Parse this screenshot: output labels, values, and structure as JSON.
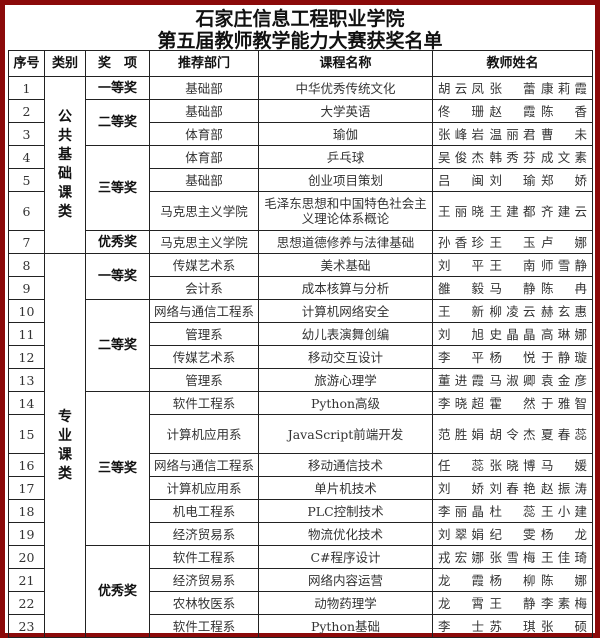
{
  "title": {
    "line1": "石家庄信息工程职业学院",
    "line2": "第五届教师教学能力大赛获奖名单"
  },
  "headers": [
    "序号",
    "类别",
    "奖　项",
    "推荐部门",
    "课程名称",
    "教师姓名"
  ],
  "categories": [
    {
      "label": "公共基础课类",
      "start": 0,
      "span": 7
    },
    {
      "label": "专业课类",
      "start": 7,
      "span": 16
    }
  ],
  "awards": [
    {
      "label": "一等奖",
      "start": 0,
      "span": 1
    },
    {
      "label": "二等奖",
      "start": 1,
      "span": 2
    },
    {
      "label": "三等奖",
      "start": 3,
      "span": 3
    },
    {
      "label": "优秀奖",
      "start": 6,
      "span": 1
    },
    {
      "label": "一等奖",
      "start": 7,
      "span": 2
    },
    {
      "label": "二等奖",
      "start": 9,
      "span": 4
    },
    {
      "label": "三等奖",
      "start": 13,
      "span": 6
    },
    {
      "label": "优秀奖",
      "start": 19,
      "span": 4
    }
  ],
  "rows": [
    {
      "no": "1",
      "dept": "基础部",
      "course": "中华优秀传统文化",
      "teachers": [
        "胡云凤",
        "张蕾",
        "康莉霞"
      ]
    },
    {
      "no": "2",
      "dept": "基础部",
      "course": "大学英语",
      "teachers": [
        "佟珊",
        "赵霞",
        "陈香"
      ]
    },
    {
      "no": "3",
      "dept": "体育部",
      "course": "瑜伽",
      "teachers": [
        "张峰岩",
        "温丽君",
        "曹未"
      ]
    },
    {
      "no": "4",
      "dept": "体育部",
      "course": "乒乓球",
      "teachers": [
        "吴俊杰",
        "韩秀芬",
        "成文素"
      ]
    },
    {
      "no": "5",
      "dept": "基础部",
      "course": "创业项目策划",
      "teachers": [
        "吕闽",
        "刘瑜",
        "郑娇"
      ]
    },
    {
      "no": "6",
      "dept": "马克思主义学院",
      "course": "毛泽东思想和中国特色社会主义理论体系概论",
      "teachers": [
        "王丽晓",
        "王建都",
        "齐建云"
      ]
    },
    {
      "no": "7",
      "dept": "马克思主义学院",
      "course": "思想道德修养与法律基础",
      "teachers": [
        "孙香珍",
        "王玉",
        "卢娜"
      ]
    },
    {
      "no": "8",
      "dept": "传媒艺术系",
      "course": "美术基础",
      "teachers": [
        "刘平",
        "王南",
        "师雪静"
      ]
    },
    {
      "no": "9",
      "dept": "会计系",
      "course": "成本核算与分析",
      "teachers": [
        "雒毅",
        "马静",
        "陈冉"
      ]
    },
    {
      "no": "10",
      "dept": "网络与通信工程系",
      "course": "计算机网络安全",
      "teachers": [
        "王新",
        "柳凌云",
        "赫玄惠"
      ]
    },
    {
      "no": "11",
      "dept": "管理系",
      "course": "幼儿表演舞创编",
      "teachers": [
        "刘旭",
        "史晶晶",
        "高琳娜"
      ]
    },
    {
      "no": "12",
      "dept": "传媒艺术系",
      "course": "移动交互设计",
      "teachers": [
        "李平",
        "杨悦",
        "于静璇"
      ]
    },
    {
      "no": "13",
      "dept": "管理系",
      "course": "旅游心理学",
      "teachers": [
        "董进霞",
        "马淑卿",
        "袁金彦"
      ]
    },
    {
      "no": "14",
      "dept": "软件工程系",
      "course": "Python高级",
      "teachers": [
        "李晓超",
        "霍然",
        "于雅智"
      ]
    },
    {
      "no": "15",
      "dept": "计算机应用系",
      "course": "JavaScript前端开发",
      "teachers": [
        "范胜娟",
        "胡令杰",
        "夏春蕊"
      ]
    },
    {
      "no": "16",
      "dept": "网络与通信工程系",
      "course": "移动通信技术",
      "teachers": [
        "任蕊",
        "张晓博",
        "马媛"
      ]
    },
    {
      "no": "17",
      "dept": "计算机应用系",
      "course": "单片机技术",
      "teachers": [
        "刘娇",
        "刘春艳",
        "赵振涛"
      ]
    },
    {
      "no": "18",
      "dept": "机电工程系",
      "course": "PLC控制技术",
      "teachers": [
        "李丽晶",
        "杜蕊",
        "王小建"
      ]
    },
    {
      "no": "19",
      "dept": "经济贸易系",
      "course": "物流优化技术",
      "teachers": [
        "刘翠娟",
        "纪雯",
        "杨龙"
      ]
    },
    {
      "no": "20",
      "dept": "软件工程系",
      "course": "C#程序设计",
      "teachers": [
        "戎宏娜",
        "张雪梅",
        "王佳琦"
      ]
    },
    {
      "no": "21",
      "dept": "经济贸易系",
      "course": "网络内容运营",
      "teachers": [
        "龙霞",
        "杨柳",
        "陈娜"
      ]
    },
    {
      "no": "22",
      "dept": "农林牧医系",
      "course": "动物药理学",
      "teachers": [
        "龙霄",
        "王静",
        "李素梅"
      ]
    },
    {
      "no": "23",
      "dept": "软件工程系",
      "course": "Python基础",
      "teachers": [
        "李士",
        "苏琪",
        "张硕"
      ]
    }
  ],
  "colors": {
    "frame": "#8b0a0a",
    "text": "#333333"
  }
}
